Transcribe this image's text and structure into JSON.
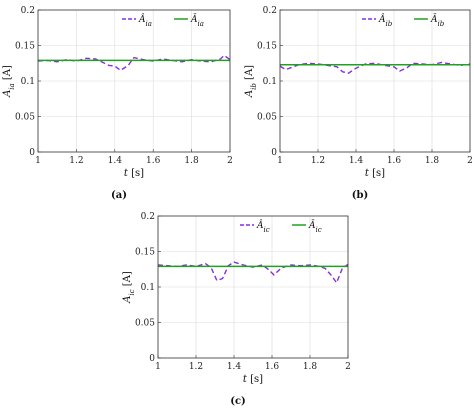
{
  "chart_data": [
    {
      "type": "line",
      "panel_label": "(a)",
      "xlabel_var": "t",
      "xlabel_unit": "[s]",
      "ylabel_var": "A",
      "ylabel_sub": "ia",
      "ylabel_unit": "[A]",
      "xlim": [
        1,
        2
      ],
      "ylim": [
        0,
        0.2
      ],
      "xticks": [
        "1",
        "1.2",
        "1.4",
        "1.6",
        "1.8",
        "2"
      ],
      "yticks": [
        "0",
        "0.05",
        "0.1",
        "0.15",
        "0.2"
      ],
      "grid": true,
      "legend_position": "top-right",
      "series": [
        {
          "name": "Â_ia",
          "legend_base": "Â",
          "legend_sub": "ia",
          "style": "dashed",
          "color": "#8a2be2",
          "x": [
            1.0,
            1.05,
            1.1,
            1.15,
            1.2,
            1.25,
            1.3,
            1.33,
            1.37,
            1.4,
            1.43,
            1.47,
            1.5,
            1.55,
            1.6,
            1.65,
            1.7,
            1.75,
            1.8,
            1.85,
            1.9,
            1.95,
            1.97,
            2.0
          ],
          "y": [
            0.128,
            0.129,
            0.127,
            0.13,
            0.128,
            0.132,
            0.131,
            0.127,
            0.122,
            0.121,
            0.115,
            0.122,
            0.133,
            0.13,
            0.128,
            0.131,
            0.129,
            0.127,
            0.13,
            0.128,
            0.127,
            0.131,
            0.136,
            0.13
          ]
        },
        {
          "name": "Ā_ia",
          "legend_base": "Ā",
          "legend_sub": "ia",
          "style": "solid",
          "color": "#1fa31f",
          "x": [
            1.0,
            2.0
          ],
          "y": [
            0.129,
            0.129
          ]
        }
      ]
    },
    {
      "type": "line",
      "panel_label": "(b)",
      "xlabel_var": "t",
      "xlabel_unit": "[s]",
      "ylabel_var": "A",
      "ylabel_sub": "ib",
      "ylabel_unit": "[A]",
      "xlim": [
        1,
        2
      ],
      "ylim": [
        0,
        0.2
      ],
      "xticks": [
        "1",
        "1.2",
        "1.4",
        "1.6",
        "1.8",
        "2"
      ],
      "yticks": [
        "0",
        "0.05",
        "0.1",
        "0.15",
        "0.2"
      ],
      "grid": true,
      "legend_position": "top-right",
      "series": [
        {
          "name": "Â_ib",
          "legend_base": "Â",
          "legend_sub": "ib",
          "style": "dashed",
          "color": "#8a2be2",
          "x": [
            1.0,
            1.03,
            1.07,
            1.1,
            1.15,
            1.2,
            1.25,
            1.3,
            1.33,
            1.36,
            1.4,
            1.45,
            1.5,
            1.55,
            1.6,
            1.63,
            1.67,
            1.7,
            1.75,
            1.8,
            1.85,
            1.9,
            1.95,
            2.0
          ],
          "y": [
            0.121,
            0.116,
            0.12,
            0.123,
            0.125,
            0.124,
            0.122,
            0.12,
            0.113,
            0.111,
            0.118,
            0.124,
            0.125,
            0.122,
            0.12,
            0.114,
            0.119,
            0.125,
            0.124,
            0.123,
            0.126,
            0.124,
            0.122,
            0.124
          ]
        },
        {
          "name": "Ā_ib",
          "legend_base": "Ā",
          "legend_sub": "ib",
          "style": "solid",
          "color": "#1fa31f",
          "x": [
            1.0,
            2.0
          ],
          "y": [
            0.123,
            0.123
          ]
        }
      ]
    },
    {
      "type": "line",
      "panel_label": "(c)",
      "xlabel_var": "t",
      "xlabel_unit": "[s]",
      "ylabel_var": "A",
      "ylabel_sub": "ic",
      "ylabel_unit": "[A]",
      "xlim": [
        1,
        2
      ],
      "ylim": [
        0,
        0.2
      ],
      "xticks": [
        "1",
        "1.2",
        "1.4",
        "1.6",
        "1.8",
        "2"
      ],
      "yticks": [
        "0",
        "0.05",
        "0.1",
        "0.15",
        "0.2"
      ],
      "grid": true,
      "legend_position": "top-right",
      "series": [
        {
          "name": "Â_ic",
          "legend_base": "Â",
          "legend_sub": "ic",
          "style": "dashed",
          "color": "#8a2be2",
          "x": [
            1.0,
            1.05,
            1.1,
            1.15,
            1.2,
            1.25,
            1.28,
            1.31,
            1.34,
            1.37,
            1.4,
            1.45,
            1.5,
            1.55,
            1.58,
            1.61,
            1.65,
            1.7,
            1.75,
            1.8,
            1.85,
            1.88,
            1.91,
            1.94,
            1.97,
            2.0
          ],
          "y": [
            0.131,
            0.13,
            0.129,
            0.131,
            0.129,
            0.133,
            0.127,
            0.109,
            0.112,
            0.13,
            0.135,
            0.131,
            0.128,
            0.131,
            0.125,
            0.117,
            0.127,
            0.131,
            0.13,
            0.131,
            0.129,
            0.126,
            0.117,
            0.106,
            0.126,
            0.132
          ]
        },
        {
          "name": "Ā_ic",
          "legend_base": "Ā",
          "legend_sub": "ic",
          "style": "solid",
          "color": "#1fa31f",
          "x": [
            1.0,
            2.0
          ],
          "y": [
            0.129,
            0.129
          ]
        }
      ]
    }
  ]
}
